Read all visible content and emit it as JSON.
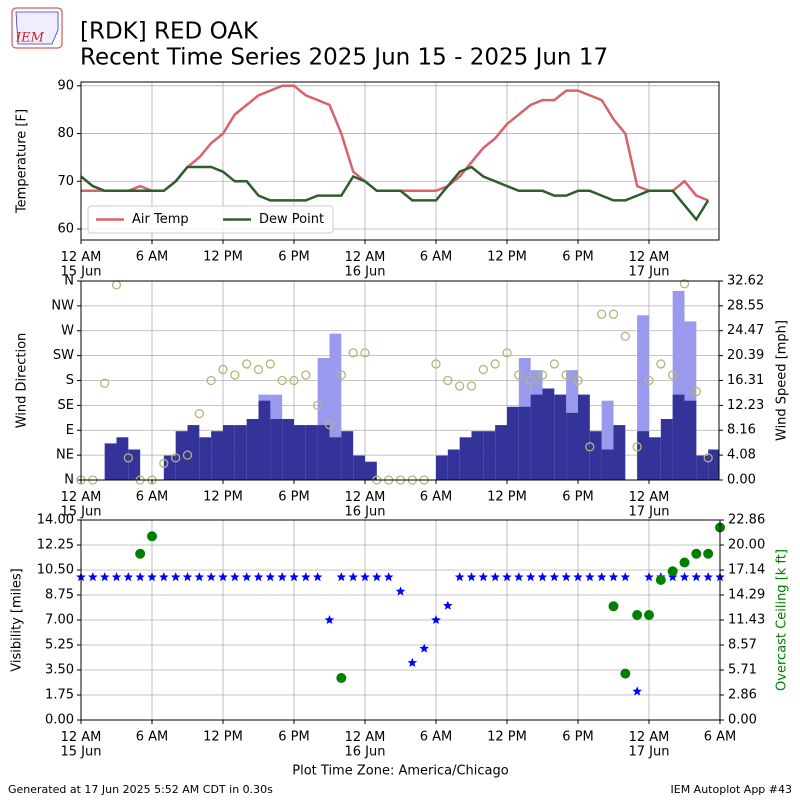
{
  "header": {
    "logo_text": "IEM",
    "title": "[RDK] RED OAK",
    "subtitle": "Recent Time Series 2025 Jun 15 - 2025 Jun 17"
  },
  "footer": {
    "generated": "Generated at 17 Jun 2025 5:52 AM CDT in 0.30s",
    "app": "IEM Autoplot App #43"
  },
  "chart_data": [
    {
      "type": "line",
      "ylabel": "Temperature [F]",
      "x": [
        "2025-06-15 00:00",
        "2025-06-15 01:00",
        "2025-06-15 02:00",
        "2025-06-15 03:00",
        "2025-06-15 04:00",
        "2025-06-15 05:00",
        "2025-06-15 06:00",
        "2025-06-15 07:00",
        "2025-06-15 08:00",
        "2025-06-15 09:00",
        "2025-06-15 10:00",
        "2025-06-15 11:00",
        "2025-06-15 12:00",
        "2025-06-15 13:00",
        "2025-06-15 14:00",
        "2025-06-15 15:00",
        "2025-06-15 16:00",
        "2025-06-15 17:00",
        "2025-06-15 18:00",
        "2025-06-15 19:00",
        "2025-06-15 20:00",
        "2025-06-15 21:00",
        "2025-06-15 22:00",
        "2025-06-15 23:00",
        "2025-06-16 00:00",
        "2025-06-16 01:00",
        "2025-06-16 02:00",
        "2025-06-16 03:00",
        "2025-06-16 04:00",
        "2025-06-16 05:00",
        "2025-06-16 06:00",
        "2025-06-16 07:00",
        "2025-06-16 08:00",
        "2025-06-16 09:00",
        "2025-06-16 10:00",
        "2025-06-16 11:00",
        "2025-06-16 12:00",
        "2025-06-16 13:00",
        "2025-06-16 14:00",
        "2025-06-16 15:00",
        "2025-06-16 16:00",
        "2025-06-16 17:00",
        "2025-06-16 18:00",
        "2025-06-16 19:00",
        "2025-06-16 20:00",
        "2025-06-16 21:00",
        "2025-06-16 22:00",
        "2025-06-16 23:00",
        "2025-06-17 00:00",
        "2025-06-17 01:00",
        "2025-06-17 02:00",
        "2025-06-17 03:00",
        "2025-06-17 04:00",
        "2025-06-17 05:00"
      ],
      "series": [
        {
          "name": "Air Temp",
          "color": "#d9626b",
          "kind": "line",
          "values": [
            68,
            68,
            68,
            68,
            68,
            69,
            68,
            68,
            70,
            73,
            75,
            78,
            80,
            84,
            86,
            88,
            89,
            90,
            90,
            88,
            87,
            86,
            80,
            72,
            70,
            68,
            68,
            68,
            68,
            68,
            68,
            69,
            71,
            74,
            77,
            79,
            82,
            84,
            86,
            87,
            87,
            89,
            89,
            88,
            87,
            83,
            80,
            69,
            68,
            68,
            68,
            70,
            67,
            66
          ]
        },
        {
          "name": "Dew Point",
          "color": "#2e5e2e",
          "kind": "line",
          "values": [
            71,
            69,
            68,
            68,
            68,
            68,
            68,
            68,
            70,
            73,
            73,
            73,
            72,
            70,
            70,
            67,
            66,
            66,
            66,
            66,
            67,
            67,
            67,
            71,
            70,
            68,
            68,
            68,
            66,
            66,
            66,
            69,
            72,
            73,
            71,
            70,
            69,
            68,
            68,
            68,
            67,
            67,
            68,
            68,
            67,
            66,
            66,
            67,
            68,
            68,
            68,
            65,
            62,
            66
          ]
        }
      ],
      "xlim": [
        "2025-06-15 00:00",
        "2025-06-17 05:55"
      ],
      "xticks": [
        {
          "value": "2025-06-15 00:00",
          "label": "12 AM\n15 Jun"
        },
        {
          "value": "2025-06-15 06:00",
          "label": "6 AM"
        },
        {
          "value": "2025-06-15 12:00",
          "label": "12 PM"
        },
        {
          "value": "2025-06-15 18:00",
          "label": "6 PM"
        },
        {
          "value": "2025-06-16 00:00",
          "label": "12 AM\n16 Jun"
        },
        {
          "value": "2025-06-16 06:00",
          "label": "6 AM"
        },
        {
          "value": "2025-06-16 12:00",
          "label": "12 PM"
        },
        {
          "value": "2025-06-16 18:00",
          "label": "6 PM"
        },
        {
          "value": "2025-06-17 00:00",
          "label": "12 AM\n17 Jun"
        }
      ],
      "ylim": [
        57.7,
        90.8
      ],
      "yticks": [
        60,
        70,
        80,
        90
      ],
      "grid": true,
      "legend": "lower left"
    },
    {
      "type": "combo",
      "ylabel": "Wind Direction",
      "y2label": "Wind Speed [mph]",
      "x": [
        "2025-06-15 00:00",
        "2025-06-15 01:00",
        "2025-06-15 02:00",
        "2025-06-15 03:00",
        "2025-06-15 04:00",
        "2025-06-15 05:00",
        "2025-06-15 06:00",
        "2025-06-15 07:00",
        "2025-06-15 08:00",
        "2025-06-15 09:00",
        "2025-06-15 10:00",
        "2025-06-15 11:00",
        "2025-06-15 12:00",
        "2025-06-15 13:00",
        "2025-06-15 14:00",
        "2025-06-15 15:00",
        "2025-06-15 16:00",
        "2025-06-15 17:00",
        "2025-06-15 18:00",
        "2025-06-15 19:00",
        "2025-06-15 20:00",
        "2025-06-15 21:00",
        "2025-06-15 22:00",
        "2025-06-15 23:00",
        "2025-06-16 00:00",
        "2025-06-16 01:00",
        "2025-06-16 02:00",
        "2025-06-16 03:00",
        "2025-06-16 04:00",
        "2025-06-16 05:00",
        "2025-06-16 06:00",
        "2025-06-16 07:00",
        "2025-06-16 08:00",
        "2025-06-16 09:00",
        "2025-06-16 10:00",
        "2025-06-16 11:00",
        "2025-06-16 12:00",
        "2025-06-16 13:00",
        "2025-06-16 14:00",
        "2025-06-16 15:00",
        "2025-06-16 16:00",
        "2025-06-16 17:00",
        "2025-06-16 18:00",
        "2025-06-16 19:00",
        "2025-06-16 20:00",
        "2025-06-16 21:00",
        "2025-06-16 22:00",
        "2025-06-16 23:00",
        "2025-06-17 00:00",
        "2025-06-17 01:00",
        "2025-06-17 02:00",
        "2025-06-17 03:00",
        "2025-06-17 04:00",
        "2025-06-17 05:00"
      ],
      "series": [
        {
          "color": "#9999ee",
          "kind": "bar",
          "axis": "y2",
          "values": [
            null,
            null,
            null,
            null,
            null,
            null,
            null,
            null,
            null,
            null,
            null,
            null,
            null,
            null,
            null,
            14,
            14,
            null,
            null,
            null,
            20,
            24,
            null,
            null,
            null,
            null,
            null,
            null,
            null,
            null,
            null,
            null,
            null,
            null,
            null,
            null,
            null,
            20,
            18,
            null,
            null,
            18,
            null,
            null,
            13,
            null,
            null,
            27,
            null,
            null,
            31,
            26,
            null,
            null
          ]
        },
        {
          "color": "#333399",
          "kind": "bar",
          "axis": "y2",
          "values": [
            0,
            0,
            6,
            7,
            5,
            0,
            0,
            4,
            8,
            9,
            7,
            8,
            9,
            9,
            10,
            13,
            10,
            10,
            9,
            9,
            9,
            7,
            8,
            4,
            3,
            0,
            0,
            0,
            0,
            0,
            4,
            5,
            7,
            8,
            8,
            9,
            12,
            12,
            14,
            15,
            14,
            11,
            14,
            8,
            5,
            9,
            0,
            8,
            7,
            10,
            14,
            13,
            4,
            5
          ]
        },
        {
          "color": "#b5b57a",
          "kind": "hollow-circle",
          "values": [
            0,
            0,
            175,
            353,
            40,
            0,
            0,
            30,
            40,
            45,
            120,
            180,
            200,
            190,
            210,
            200,
            210,
            180,
            180,
            190,
            135,
            100,
            190,
            230,
            230,
            0,
            0,
            0,
            0,
            0,
            210,
            180,
            170,
            170,
            200,
            210,
            230,
            190,
            180,
            190,
            210,
            190,
            180,
            60,
            300,
            300,
            260,
            60,
            180,
            210,
            190,
            355,
            160,
            40
          ]
        }
      ],
      "xlim": [
        "2025-06-15 00:00",
        "2025-06-17 05:55"
      ],
      "xticks": [
        {
          "value": "2025-06-15 00:00",
          "label": "12 AM\n15 Jun"
        },
        {
          "value": "2025-06-15 06:00",
          "label": "6 AM"
        },
        {
          "value": "2025-06-15 12:00",
          "label": "12 PM"
        },
        {
          "value": "2025-06-15 18:00",
          "label": "6 PM"
        },
        {
          "value": "2025-06-16 00:00",
          "label": "12 AM\n16 Jun"
        },
        {
          "value": "2025-06-16 06:00",
          "label": "6 AM"
        },
        {
          "value": "2025-06-16 12:00",
          "label": "12 PM"
        },
        {
          "value": "2025-06-16 18:00",
          "label": "6 PM"
        },
        {
          "value": "2025-06-17 00:00",
          "label": "12 AM\n17 Jun"
        }
      ],
      "ylim": [
        0,
        360
      ],
      "yticks": [
        {
          "value": 0,
          "label": "N"
        },
        {
          "value": 45,
          "label": "NE"
        },
        {
          "value": 90,
          "label": "E"
        },
        {
          "value": 135,
          "label": "SE"
        },
        {
          "value": 180,
          "label": "S"
        },
        {
          "value": 225,
          "label": "SW"
        },
        {
          "value": 270,
          "label": "W"
        },
        {
          "value": 315,
          "label": "NW"
        },
        {
          "value": 360,
          "label": "N"
        }
      ],
      "y2lim": [
        0,
        32.62
      ],
      "y2ticks": [
        {
          "value": 0,
          "label": "0.00"
        },
        4.08,
        8.16,
        12.23,
        16.31,
        20.39,
        24.47,
        28.55,
        32.62
      ],
      "grid": true
    },
    {
      "type": "scatter",
      "ylabel": "Visibility [miles]",
      "y2label": "Overcast Ceiling [k ft]",
      "y2label_color": "#008000",
      "xlabel": "Plot Time Zone: America/Chicago",
      "x": [
        "2025-06-15 00:00",
        "2025-06-15 01:00",
        "2025-06-15 02:00",
        "2025-06-15 03:00",
        "2025-06-15 04:00",
        "2025-06-15 05:00",
        "2025-06-15 06:00",
        "2025-06-15 07:00",
        "2025-06-15 08:00",
        "2025-06-15 09:00",
        "2025-06-15 10:00",
        "2025-06-15 11:00",
        "2025-06-15 12:00",
        "2025-06-15 13:00",
        "2025-06-15 14:00",
        "2025-06-15 15:00",
        "2025-06-15 16:00",
        "2025-06-15 17:00",
        "2025-06-15 18:00",
        "2025-06-15 19:00",
        "2025-06-15 20:00",
        "2025-06-15 21:00",
        "2025-06-15 22:00",
        "2025-06-15 23:00",
        "2025-06-16 00:00",
        "2025-06-16 01:00",
        "2025-06-16 02:00",
        "2025-06-16 03:00",
        "2025-06-16 04:00",
        "2025-06-16 05:00",
        "2025-06-16 06:00",
        "2025-06-16 07:00",
        "2025-06-16 08:00",
        "2025-06-16 09:00",
        "2025-06-16 10:00",
        "2025-06-16 11:00",
        "2025-06-16 12:00",
        "2025-06-16 13:00",
        "2025-06-16 14:00",
        "2025-06-16 15:00",
        "2025-06-16 16:00",
        "2025-06-16 17:00",
        "2025-06-16 18:00",
        "2025-06-16 19:00",
        "2025-06-16 20:00",
        "2025-06-16 21:00",
        "2025-06-16 22:00",
        "2025-06-16 23:00",
        "2025-06-17 00:00",
        "2025-06-17 01:00",
        "2025-06-17 02:00",
        "2025-06-17 03:00",
        "2025-06-17 04:00",
        "2025-06-17 05:00",
        "2025-06-17 06:00"
      ],
      "series": [
        {
          "color": "#0000ff",
          "kind": "star",
          "values": [
            10,
            10,
            10,
            10,
            10,
            10,
            10,
            10,
            10,
            10,
            10,
            10,
            10,
            10,
            10,
            10,
            10,
            10,
            10,
            10,
            10,
            7,
            10,
            10,
            10,
            10,
            10,
            9,
            4,
            5,
            7,
            8,
            10,
            10,
            10,
            10,
            10,
            10,
            10,
            10,
            10,
            10,
            10,
            10,
            10,
            10,
            10,
            2,
            10,
            10,
            10,
            10,
            10,
            10,
            10
          ]
        },
        {
          "color": "#008000",
          "kind": "circle",
          "axis": "y2",
          "values": [
            null,
            null,
            null,
            null,
            null,
            19,
            21,
            null,
            null,
            null,
            null,
            null,
            null,
            null,
            null,
            null,
            null,
            null,
            null,
            null,
            null,
            null,
            4.8,
            null,
            null,
            null,
            null,
            null,
            null,
            null,
            null,
            null,
            null,
            null,
            null,
            null,
            null,
            null,
            null,
            null,
            null,
            null,
            null,
            null,
            null,
            13,
            5.3,
            12,
            12,
            16,
            17,
            18,
            19,
            19,
            22
          ]
        }
      ],
      "xlim": [
        "2025-06-15 00:00",
        "2025-06-17 06:00"
      ],
      "xticks": [
        {
          "value": "2025-06-15 00:00",
          "label": "12 AM\n15 Jun"
        },
        {
          "value": "2025-06-15 06:00",
          "label": "6 AM"
        },
        {
          "value": "2025-06-15 12:00",
          "label": "12 PM"
        },
        {
          "value": "2025-06-15 18:00",
          "label": "6 PM"
        },
        {
          "value": "2025-06-16 00:00",
          "label": "12 AM\n16 Jun"
        },
        {
          "value": "2025-06-16 06:00",
          "label": "6 AM"
        },
        {
          "value": "2025-06-16 12:00",
          "label": "12 PM"
        },
        {
          "value": "2025-06-16 18:00",
          "label": "6 PM"
        },
        {
          "value": "2025-06-17 00:00",
          "label": "12 AM\n17 Jun"
        },
        {
          "value": "2025-06-17 06:00",
          "label": "6 AM"
        }
      ],
      "ylim": [
        0,
        14
      ],
      "yticks": [
        {
          "value": 0,
          "label": "0.00"
        },
        1.75,
        {
          "value": 3.5,
          "label": "3.50"
        },
        5.25,
        {
          "value": 7,
          "label": "7.00"
        },
        8.75,
        {
          "value": 10.5,
          "label": "10.50"
        },
        12.25,
        {
          "value": 14,
          "label": "14.00"
        }
      ],
      "y2lim": [
        0,
        22.86
      ],
      "y2ticks": [
        {
          "value": 0,
          "label": "0.00"
        },
        2.86,
        5.71,
        8.57,
        11.43,
        14.29,
        17.14,
        {
          "value": 20,
          "label": "20.00"
        },
        22.86
      ],
      "grid": true
    }
  ]
}
